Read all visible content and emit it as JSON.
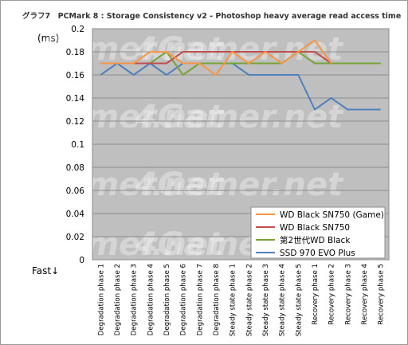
{
  "chart_data": {
    "type": "line",
    "title": "グラフ7　PCMark 8 : Storage Consistency v2 - Photoshop heavy average read access time",
    "ylabel": "(ms)",
    "annotation": "Fast↓",
    "watermark": "4Gamer.net",
    "ylim": [
      0,
      0.2
    ],
    "y_ticks": [
      "0",
      "0.02",
      "0.04",
      "0.06",
      "0.08",
      "0.1",
      "0.12",
      "0.14",
      "0.16",
      "0.18",
      "0.2"
    ],
    "grid": true,
    "legend_position": "bottom-right",
    "categories": [
      "Degradation phase 1",
      "Degradation phase 2",
      "Degradation phase 3",
      "Degradation phase 4",
      "Degradation phase 5",
      "Degradation phase 6",
      "Degradation phase 7",
      "Degradation phase 8",
      "Steady state phase 1",
      "Steady state phase 2",
      "Steady state phase 3",
      "Steady state phase 4",
      "Steady state phase 5",
      "Recovery phase 1",
      "Recovery phase 2",
      "Recovery phase 3",
      "Recovery phase 4",
      "Recovery phase 5"
    ],
    "series": [
      {
        "name": "SSD 970 EVO Plus",
        "color": "#4f81bd",
        "values": [
          0.16,
          0.17,
          0.16,
          0.17,
          0.16,
          0.17,
          0.17,
          0.17,
          0.17,
          0.16,
          0.16,
          0.16,
          0.16,
          0.13,
          0.14,
          0.13,
          0.13,
          0.13
        ]
      },
      {
        "name": "第2世代WD Black",
        "color": "#77a33a",
        "values": [
          0.17,
          0.17,
          0.17,
          0.17,
          0.18,
          0.16,
          0.17,
          0.17,
          0.17,
          0.17,
          0.17,
          0.17,
          0.18,
          0.17,
          0.17,
          0.17,
          0.17,
          0.17
        ]
      },
      {
        "name": "WD Black SN750",
        "color": "#c0504d",
        "values": [
          0.17,
          0.17,
          0.17,
          0.17,
          0.17,
          0.18,
          0.18,
          0.18,
          0.18,
          0.18,
          0.18,
          0.18,
          0.18,
          0.18,
          0.17,
          null,
          null,
          null
        ]
      },
      {
        "name": "WD Black SN750 (Game)",
        "color": "#f79646",
        "values": [
          0.17,
          0.17,
          0.17,
          0.18,
          0.18,
          0.17,
          0.17,
          0.16,
          0.18,
          0.17,
          0.18,
          0.17,
          0.18,
          0.19,
          0.17,
          null,
          null,
          null
        ]
      }
    ],
    "legend_order": [
      "WD Black SN750 (Game)",
      "WD Black SN750",
      "第2世代WD Black",
      "SSD 970 EVO Plus"
    ]
  }
}
